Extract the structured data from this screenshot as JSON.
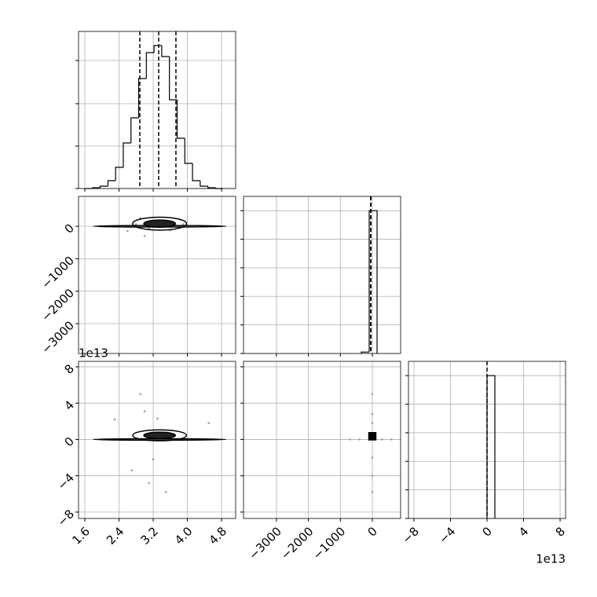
{
  "chart_data": [
    {
      "type": "histogram",
      "xlim": [
        1.453,
        5.13
      ],
      "ylim": [
        0,
        200
      ],
      "xticks": [
        1.6,
        2.4,
        3.2,
        4,
        4.8
      ],
      "yticks": [
        0,
        54,
        108,
        163
      ],
      "grid": true,
      "color": "#000000",
      "bins": [
        1.6,
        1.78,
        1.96,
        2.14,
        2.32,
        2.5,
        2.68,
        2.86,
        3.04,
        3.22,
        3.4,
        3.58,
        3.76,
        3.94,
        4.12,
        4.3,
        4.48,
        4.66,
        4.84
      ],
      "counts": [
        0,
        1,
        3,
        10,
        27,
        58,
        90,
        140,
        173,
        182,
        168,
        113,
        64,
        32,
        10,
        3,
        1,
        0
      ],
      "quantiles": [
        2.887,
        3.328,
        3.732
      ]
    },
    {
      "type": "scatter",
      "xlim": [
        1.453,
        5.13
      ],
      "ylim": [
        -3920,
        920
      ],
      "xticks": [
        1.6,
        2.4,
        3.2,
        4,
        4.8
      ],
      "yticks": [
        {
          "value": 0,
          "label": "0"
        },
        {
          "value": -1000,
          "label": "−1000"
        },
        {
          "value": -2000,
          "label": "−2000"
        },
        {
          "value": -3000,
          "label": "−3000"
        }
      ],
      "grid": true,
      "color": "#000000",
      "point_color": "#9e9e9e",
      "x": [
        2.3,
        2.6,
        2.9,
        3.0,
        3.4,
        3.6,
        3.9,
        4.3,
        2.8,
        3.1
      ],
      "y": [
        0,
        -150,
        250,
        -300,
        180,
        -120,
        60,
        0,
        60,
        -80
      ],
      "contours": [
        {
          "cx": 3.35,
          "cy": 0,
          "rx": 1.55,
          "ry": 25
        },
        {
          "cx": 3.35,
          "cy": 80,
          "rx": 0.63,
          "ry": 200
        },
        {
          "cx": 3.35,
          "cy": 80,
          "rx": 0.37,
          "ry": 110,
          "fill": "#222222"
        }
      ]
    },
    {
      "type": "histogram",
      "xlim": [
        -4030,
        885
      ],
      "ylim": [
        0,
        110
      ],
      "xticks": [
        -3000,
        -2000,
        -1000,
        0
      ],
      "yticks": [
        0,
        20,
        40,
        60,
        80,
        100
      ],
      "grid": true,
      "color": "#000000",
      "bins": [
        -344,
        -98,
        148
      ],
      "counts": [
        1,
        100
      ],
      "quantiles": [
        -55,
        -49,
        -43
      ]
    },
    {
      "type": "scatter",
      "xlim": [
        1.453,
        5.13
      ],
      "ylim": [
        -8.7,
        8.6
      ],
      "xticks": [
        1.6,
        2.4,
        3.2,
        {
          "value": 4,
          "label": "4.0"
        },
        4.8
      ],
      "yticks": [
        8,
        4,
        0,
        {
          "value": -4,
          "label": "−4"
        },
        {
          "value": -8,
          "label": "−8"
        }
      ],
      "y_offset_label": "1e13",
      "grid": true,
      "color": "#000000",
      "point_color": "#9e9e9e",
      "x": [
        2.3,
        2.9,
        3.0,
        3.5,
        3.3,
        3.2,
        4.5,
        2.7,
        3.1
      ],
      "y": [
        2.2,
        5,
        3.1,
        -5.8,
        2.3,
        -2.2,
        1.8,
        -3.4,
        -4.8
      ],
      "contours": [
        {
          "cx": 3.35,
          "cy": 0,
          "rx": 1.55,
          "ry": 0.08
        },
        {
          "cx": 3.35,
          "cy": 0.45,
          "rx": 0.63,
          "ry": 0.6
        },
        {
          "cx": 3.35,
          "cy": 0.45,
          "rx": 0.37,
          "ry": 0.35,
          "fill": "#222222"
        }
      ]
    },
    {
      "type": "scatter",
      "xlim": [
        -4030,
        885
      ],
      "ylim": [
        -8.7,
        8.6
      ],
      "xticks": [
        {
          "value": -3000,
          "label": "−3000"
        },
        {
          "value": -2000,
          "label": "−2000"
        },
        {
          "value": -1000,
          "label": "−1000"
        },
        0
      ],
      "yticks": [
        8,
        4,
        0,
        -4,
        -8
      ],
      "grid": true,
      "color": "#000000",
      "point_color": "#9e9e9e",
      "x": [
        0,
        0,
        0,
        0,
        0,
        -700,
        -400,
        300,
        600,
        0
      ],
      "y": [
        5,
        2.8,
        1.8,
        -2,
        -5.8,
        0,
        0,
        0,
        0,
        -4
      ],
      "contours": [
        {
          "cx": 0,
          "cy": 0.35,
          "rx": 110,
          "ry": 0.4,
          "fill": "#000000",
          "shape": "rect"
        }
      ]
    },
    {
      "type": "histogram",
      "xlim": [
        -8.6,
        8.6
      ],
      "ylim": [
        0,
        110
      ],
      "xticks": [
        {
          "value": -8,
          "label": "−8"
        },
        {
          "value": -4,
          "label": "−4"
        },
        0,
        4,
        8
      ],
      "yticks": [
        0,
        20,
        40,
        60,
        80,
        100
      ],
      "x_offset_label": "1e13",
      "grid": true,
      "color": "#000000",
      "bins": [
        0,
        0.86
      ],
      "counts": [
        100
      ],
      "quantiles": [
        0
      ]
    }
  ]
}
